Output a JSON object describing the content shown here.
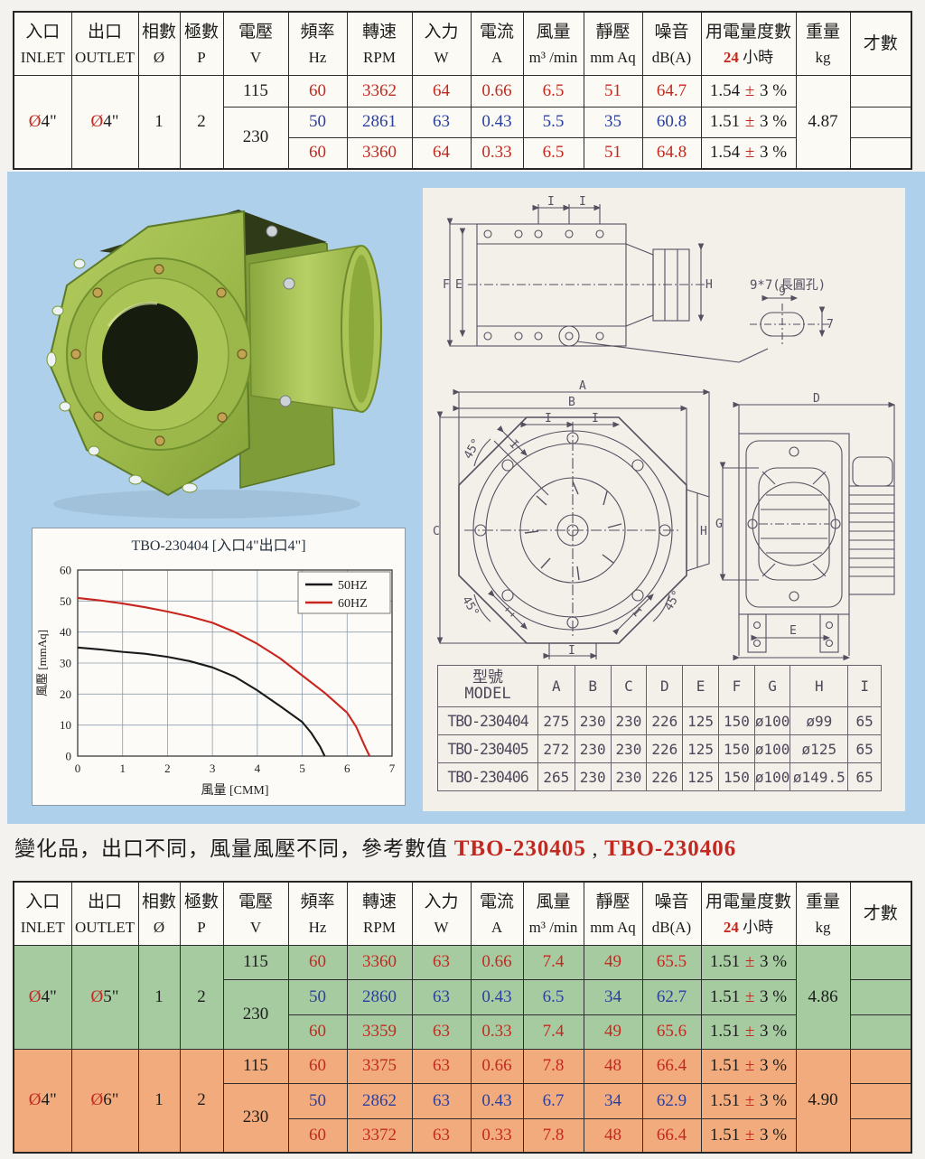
{
  "spec_headers": [
    {
      "zh": "入口",
      "en": "INLET"
    },
    {
      "zh": "出口",
      "en": "OUTLET"
    },
    {
      "zh": "相數",
      "en": "Ø"
    },
    {
      "zh": "極數",
      "en": "P"
    },
    {
      "zh": "電壓",
      "en": "V"
    },
    {
      "zh": "頻率",
      "en": "Hz"
    },
    {
      "zh": "轉速",
      "en": "RPM"
    },
    {
      "zh": "入力",
      "en": "W"
    },
    {
      "zh": "電流",
      "en": "A"
    },
    {
      "zh": "風量",
      "en": "m³ /min"
    },
    {
      "zh": "靜壓",
      "en": "mm Aq"
    },
    {
      "zh": "噪音",
      "en": "dB(A)"
    },
    {
      "zh": "用電量度數",
      "red": "24",
      "en": "小時"
    },
    {
      "zh": "重量",
      "en": "kg"
    },
    {
      "zh": "才數",
      "en": ""
    }
  ],
  "top_table": {
    "inlet": {
      "sym": "Ø",
      "size": "4\""
    },
    "outlet": {
      "sym": "Ø",
      "size": "4\""
    },
    "phase": "1",
    "poles": "2",
    "weight": "4.87",
    "v115": "115",
    "v230": "230",
    "rows": [
      {
        "hz": "60",
        "rpm": "3362",
        "w": "64",
        "a": "0.66",
        "flow": "6.5",
        "sp": "51",
        "db": "64.7",
        "kwh": "1.54",
        "pm": "±",
        "tol": "3 %"
      },
      {
        "hz": "50",
        "rpm": "2861",
        "w": "63",
        "a": "0.43",
        "flow": "5.5",
        "sp": "35",
        "db": "60.8",
        "kwh": "1.51",
        "pm": "±",
        "tol": "3 %"
      },
      {
        "hz": "60",
        "rpm": "3360",
        "w": "64",
        "a": "0.33",
        "flow": "6.5",
        "sp": "51",
        "db": "64.8",
        "kwh": "1.54",
        "pm": "±",
        "tol": "3 %"
      }
    ]
  },
  "note": {
    "text": "變化品，出口不同，風量風壓不同，參考數值",
    "m1": "TBO-230405",
    "sep": " , ",
    "m2": "TBO-230406"
  },
  "variants": {
    "blocks": [
      {
        "inlet": {
          "sym": "Ø",
          "size": "4\""
        },
        "outlet": {
          "sym": "Ø",
          "size": "5\""
        },
        "phase": "1",
        "poles": "2",
        "weight": "4.86",
        "v115": "115",
        "v230": "230",
        "rows": [
          {
            "hz": "60",
            "rpm": "3360",
            "w": "63",
            "a": "0.66",
            "flow": "7.4",
            "sp": "49",
            "db": "65.5",
            "kwh": "1.51",
            "pm": "±",
            "tol": "3 %"
          },
          {
            "hz": "50",
            "rpm": "2860",
            "w": "63",
            "a": "0.43",
            "flow": "6.5",
            "sp": "34",
            "db": "62.7",
            "kwh": "1.51",
            "pm": "±",
            "tol": "3 %"
          },
          {
            "hz": "60",
            "rpm": "3359",
            "w": "63",
            "a": "0.33",
            "flow": "7.4",
            "sp": "49",
            "db": "65.6",
            "kwh": "1.51",
            "pm": "±",
            "tol": "3 %"
          }
        ]
      },
      {
        "inlet": {
          "sym": "Ø",
          "size": "4\""
        },
        "outlet": {
          "sym": "Ø",
          "size": "6\""
        },
        "phase": "1",
        "poles": "2",
        "weight": "4.90",
        "v115": "115",
        "v230": "230",
        "rows": [
          {
            "hz": "60",
            "rpm": "3375",
            "w": "63",
            "a": "0.66",
            "flow": "7.8",
            "sp": "48",
            "db": "66.4",
            "kwh": "1.51",
            "pm": "±",
            "tol": "3 %"
          },
          {
            "hz": "50",
            "rpm": "2862",
            "w": "63",
            "a": "0.43",
            "flow": "6.7",
            "sp": "34",
            "db": "62.9",
            "kwh": "1.51",
            "pm": "±",
            "tol": "3 %"
          },
          {
            "hz": "60",
            "rpm": "3372",
            "w": "63",
            "a": "0.33",
            "flow": "7.8",
            "sp": "48",
            "db": "66.4",
            "kwh": "1.51",
            "pm": "±",
            "tol": "3 %"
          }
        ]
      }
    ]
  },
  "model_table": {
    "header_zh": "型號",
    "header_en": "MODEL",
    "columns": [
      "A",
      "B",
      "C",
      "D",
      "E",
      "F",
      "G",
      "H",
      "I"
    ],
    "rows": [
      {
        "model": "TBO-230404",
        "values": [
          "275",
          "230",
          "230",
          "226",
          "125",
          "150",
          "ø100",
          "ø99",
          "65"
        ]
      },
      {
        "model": "TBO-230405",
        "values": [
          "272",
          "230",
          "230",
          "226",
          "125",
          "150",
          "ø100",
          "ø125",
          "65"
        ]
      },
      {
        "model": "TBO-230406",
        "values": [
          "265",
          "230",
          "230",
          "226",
          "125",
          "150",
          "ø100",
          "ø149.5",
          "65"
        ]
      }
    ]
  },
  "drawings": {
    "top_view": {
      "dim_i1": "I",
      "dim_i2": "I",
      "dim_f": "F",
      "dim_e": "E",
      "dim_h": "H",
      "callout": "9*7(長圓孔)",
      "callout_w": "9",
      "callout_h": "7"
    },
    "front_view": {
      "dim_a": "A",
      "dim_b": "B",
      "dim_c": "C",
      "dim_i_t1": "I",
      "dim_i_t2": "I",
      "dim_i_tl": "I",
      "dim_i_bl": "I",
      "dim_i_br": "I",
      "dim_i_bot": "I",
      "dim_h": "H",
      "ang1": "45°",
      "ang2": "45°",
      "ang3": "45°"
    },
    "side_view": {
      "dim_d": "D",
      "dim_g": "G",
      "dim_e": "E"
    }
  },
  "chart_data": {
    "type": "line",
    "title": "TBO-230404 [入口4\"出口4\"]",
    "xlabel": "風量 [CMM]",
    "ylabel": "風壓 [mmAq]",
    "xlim": [
      0,
      7
    ],
    "ylim": [
      0,
      60
    ],
    "xticks": [
      0,
      1,
      2,
      3,
      4,
      5,
      6,
      7
    ],
    "yticks": [
      0,
      10,
      20,
      30,
      40,
      50,
      60
    ],
    "grid": true,
    "legend_position": "top-right",
    "series": [
      {
        "name": "50HZ",
        "color": "#1a1a1a",
        "points": [
          [
            0,
            35
          ],
          [
            0.5,
            34.4
          ],
          [
            1,
            33.6
          ],
          [
            1.5,
            33
          ],
          [
            2,
            32
          ],
          [
            2.5,
            30.6
          ],
          [
            3,
            28.6
          ],
          [
            3.5,
            25.6
          ],
          [
            4,
            21.2
          ],
          [
            4.5,
            16.2
          ],
          [
            5,
            11
          ],
          [
            5.2,
            7.5
          ],
          [
            5.4,
            3
          ],
          [
            5.5,
            0
          ]
        ]
      },
      {
        "name": "60HZ",
        "color": "#c7251d",
        "points": [
          [
            0,
            51
          ],
          [
            0.5,
            50.2
          ],
          [
            1,
            49.2
          ],
          [
            1.5,
            48
          ],
          [
            2,
            46.6
          ],
          [
            2.5,
            45
          ],
          [
            3,
            43
          ],
          [
            3.5,
            40
          ],
          [
            4,
            36.2
          ],
          [
            4.5,
            31.6
          ],
          [
            5,
            26
          ],
          [
            5.5,
            20.4
          ],
          [
            6,
            14
          ],
          [
            6.2,
            9.5
          ],
          [
            6.4,
            3
          ],
          [
            6.5,
            0
          ]
        ]
      }
    ]
  },
  "colors": {
    "accent_red": "#c22a21",
    "accent_blue": "#2b3f9e",
    "row_green": "#a6cba1",
    "row_orange": "#f2ab7c",
    "page_blue": "#afd0ea",
    "panel_cream": "#f2f0e9",
    "drawing_line": "#574e60",
    "product_green": "#9cb84a"
  }
}
